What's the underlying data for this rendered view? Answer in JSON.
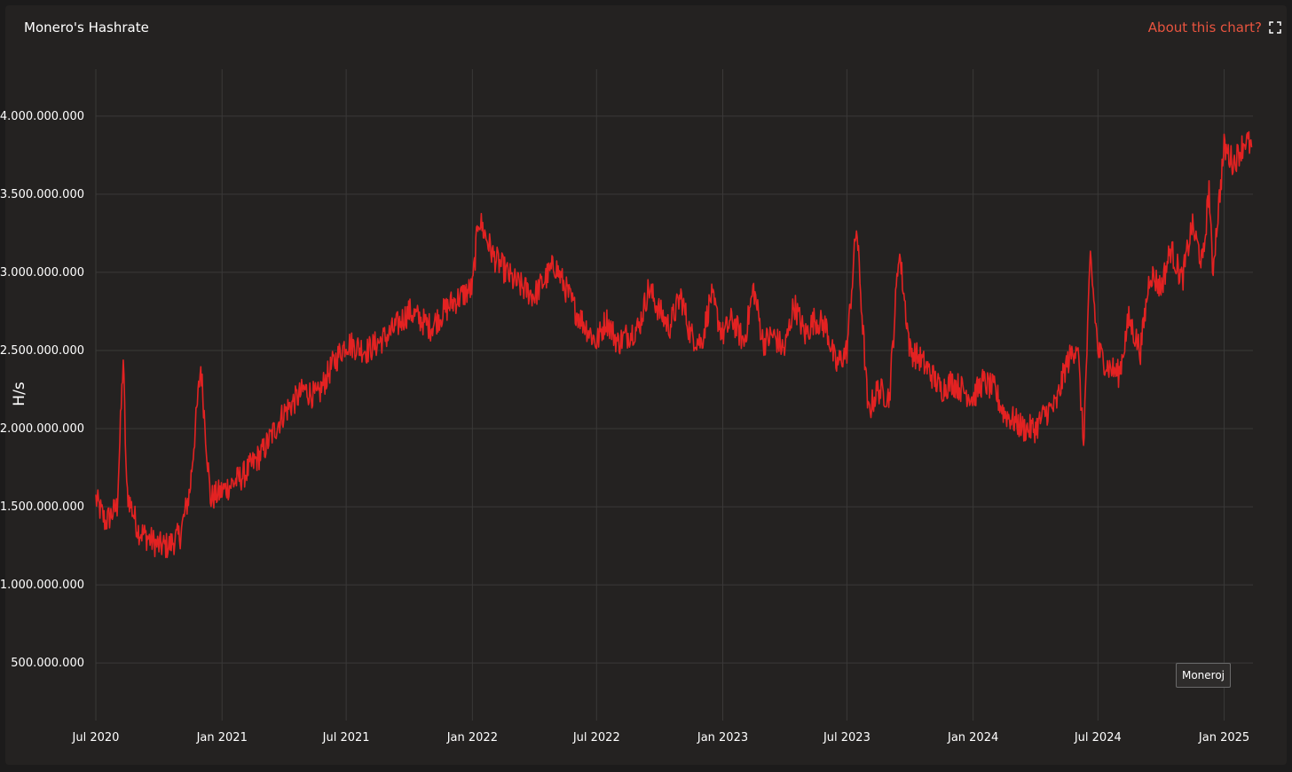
{
  "header": {
    "title": "Monero's Hashrate",
    "about_link": "About this chart?",
    "expand_icon": "expand-arrows-icon"
  },
  "watermark": "Moneroj",
  "colors": {
    "background": "#242221",
    "line": "#e32222",
    "grid": "#3a3938",
    "text": "#ffffff",
    "link": "#e8543f"
  },
  "chart_data": {
    "type": "line",
    "title": "Monero's Hashrate",
    "xlabel": "",
    "ylabel": "H/s",
    "ylim": [
      200000000,
      4300000000
    ],
    "xlim": [
      "2020-07-01",
      "2025-02-12"
    ],
    "grid": true,
    "y_ticks": [
      500000000,
      1000000000,
      1500000000,
      2000000000,
      2500000000,
      3000000000,
      3500000000,
      4000000000
    ],
    "y_tick_labels": [
      "500.000.000",
      "1.000.000.000",
      "1.500.000.000",
      "2.000.000.000",
      "2.500.000.000",
      "3.000.000.000",
      "3.500.000.000",
      "4.000.000.000"
    ],
    "x_ticks": [
      "2020-07-01",
      "2021-01-01",
      "2021-07-01",
      "2022-01-01",
      "2022-07-01",
      "2023-01-01",
      "2023-07-01",
      "2024-01-01",
      "2024-07-01",
      "2025-01-01"
    ],
    "x_tick_labels": [
      "Jul 2020",
      "Jan 2021",
      "Jul 2021",
      "Jan 2022",
      "Jul 2022",
      "Jan 2023",
      "Jul 2023",
      "Jan 2024",
      "Jul 2024",
      "Jan 2025"
    ],
    "series": [
      {
        "name": "",
        "x": [
          "2020-07-01",
          "2020-07-15",
          "2020-08-01",
          "2020-08-10",
          "2020-08-15",
          "2020-09-01",
          "2020-09-15",
          "2020-10-01",
          "2020-10-15",
          "2020-11-01",
          "2020-11-15",
          "2020-12-01",
          "2020-12-15",
          "2021-01-01",
          "2021-02-01",
          "2021-03-01",
          "2021-04-01",
          "2021-05-01",
          "2021-05-20",
          "2021-06-10",
          "2021-07-01",
          "2021-08-01",
          "2021-09-01",
          "2021-10-01",
          "2021-11-01",
          "2021-12-01",
          "2022-01-01",
          "2022-01-10",
          "2022-02-01",
          "2022-03-01",
          "2022-04-01",
          "2022-05-01",
          "2022-06-01",
          "2022-07-01",
          "2022-07-15",
          "2022-08-01",
          "2022-08-15",
          "2022-09-01",
          "2022-09-15",
          "2022-10-01",
          "2022-10-15",
          "2022-11-01",
          "2022-11-15",
          "2022-12-01",
          "2022-12-15",
          "2023-01-01",
          "2023-01-15",
          "2023-02-01",
          "2023-02-15",
          "2023-03-01",
          "2023-03-15",
          "2023-04-01",
          "2023-04-15",
          "2023-05-01",
          "2023-05-15",
          "2023-06-01",
          "2023-06-15",
          "2023-07-01",
          "2023-07-15",
          "2023-08-01",
          "2023-08-15",
          "2023-09-01",
          "2023-09-15",
          "2023-10-01",
          "2023-10-15",
          "2023-11-01",
          "2023-11-15",
          "2023-12-01",
          "2024-01-01",
          "2024-01-15",
          "2024-02-01",
          "2024-02-15",
          "2024-03-01",
          "2024-03-15",
          "2024-04-01",
          "2024-04-15",
          "2024-05-01",
          "2024-05-15",
          "2024-06-01",
          "2024-06-10",
          "2024-06-20",
          "2024-07-01",
          "2024-07-15",
          "2024-08-01",
          "2024-08-15",
          "2024-09-01",
          "2024-09-15",
          "2024-10-01",
          "2024-10-15",
          "2024-11-01",
          "2024-11-15",
          "2024-12-01",
          "2024-12-10",
          "2024-12-15",
          "2025-01-01",
          "2025-01-15",
          "2025-02-01",
          "2025-02-10"
        ],
        "y": [
          1550000000,
          1400000000,
          1500000000,
          2450000000,
          1600000000,
          1350000000,
          1300000000,
          1250000000,
          1250000000,
          1320000000,
          1600000000,
          2400000000,
          1550000000,
          1600000000,
          1700000000,
          1850000000,
          2100000000,
          2250000000,
          2200000000,
          2400000000,
          2550000000,
          2500000000,
          2600000000,
          2750000000,
          2650000000,
          2800000000,
          2900000000,
          3350000000,
          3100000000,
          2950000000,
          2850000000,
          3050000000,
          2750000000,
          2550000000,
          2700000000,
          2550000000,
          2600000000,
          2650000000,
          2900000000,
          2750000000,
          2650000000,
          2850000000,
          2600000000,
          2550000000,
          2850000000,
          2600000000,
          2700000000,
          2550000000,
          2900000000,
          2550000000,
          2600000000,
          2500000000,
          2800000000,
          2600000000,
          2700000000,
          2650000000,
          2400000000,
          2500000000,
          3300000000,
          2100000000,
          2250000000,
          2200000000,
          3150000000,
          2500000000,
          2450000000,
          2350000000,
          2250000000,
          2300000000,
          2200000000,
          2300000000,
          2250000000,
          2100000000,
          2050000000,
          2000000000,
          2000000000,
          2100000000,
          2150000000,
          2400000000,
          2550000000,
          1900000000,
          3100000000,
          2500000000,
          2400000000,
          2350000000,
          2700000000,
          2500000000,
          3000000000,
          2900000000,
          3150000000,
          2950000000,
          3300000000,
          3050000000,
          3550000000,
          3000000000,
          3800000000,
          3700000000,
          3850000000,
          3800000000
        ]
      }
    ]
  }
}
